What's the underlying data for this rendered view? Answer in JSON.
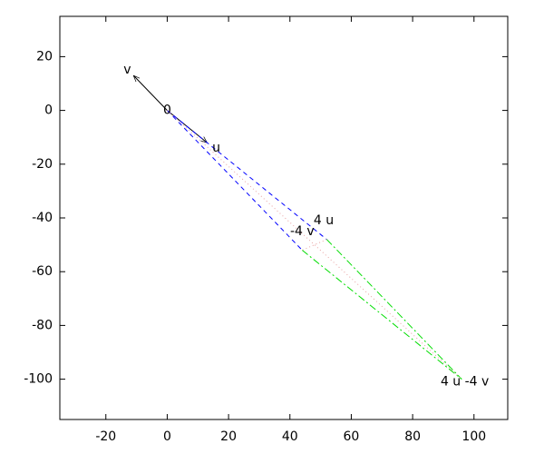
{
  "chart_data": {
    "type": "vector",
    "xlim": [
      -35,
      111
    ],
    "ylim": [
      -115,
      35
    ],
    "xticks": [
      -20,
      0,
      20,
      40,
      60,
      80,
      100
    ],
    "yticks": [
      20,
      0,
      -20,
      -40,
      -60,
      -80,
      -100
    ],
    "series": [
      {
        "color": "#000000",
        "style": "solid",
        "arrow": true,
        "x": [
          0,
          13
        ],
        "y": [
          0,
          -12
        ]
      },
      {
        "color": "#000000",
        "style": "solid",
        "arrow": true,
        "x": [
          0,
          -11
        ],
        "y": [
          0,
          13
        ]
      },
      {
        "color": "#0000ff",
        "style": "dashed",
        "x": [
          0,
          52
        ],
        "y": [
          0,
          -48
        ]
      },
      {
        "color": "#0000ff",
        "style": "dashed",
        "x": [
          0,
          44
        ],
        "y": [
          0,
          -52
        ]
      },
      {
        "color": "#00dd00",
        "style": "dashdot",
        "x": [
          52,
          96
        ],
        "y": [
          -48,
          -100
        ]
      },
      {
        "color": "#00dd00",
        "style": "dashdot",
        "x": [
          44,
          96
        ],
        "y": [
          -52,
          -100
        ]
      },
      {
        "color": "#e8a0a0",
        "style": "dotted",
        "x": [
          0,
          96
        ],
        "y": [
          0,
          -100
        ]
      },
      {
        "color": "#e8a0a0",
        "style": "dotted",
        "x": [
          52,
          44
        ],
        "y": [
          -48,
          -52
        ]
      }
    ],
    "annotations": [
      {
        "text": "v",
        "x": -13,
        "y": 15
      },
      {
        "text": "0",
        "x": 0,
        "y": 0
      },
      {
        "text": "u",
        "x": 16,
        "y": -14
      },
      {
        "text": "4 u",
        "x": 51,
        "y": -41
      },
      {
        "text": "-4 v",
        "x": 44,
        "y": -45
      },
      {
        "text": "4 u -4 v",
        "x": 97,
        "y": -101
      }
    ]
  }
}
